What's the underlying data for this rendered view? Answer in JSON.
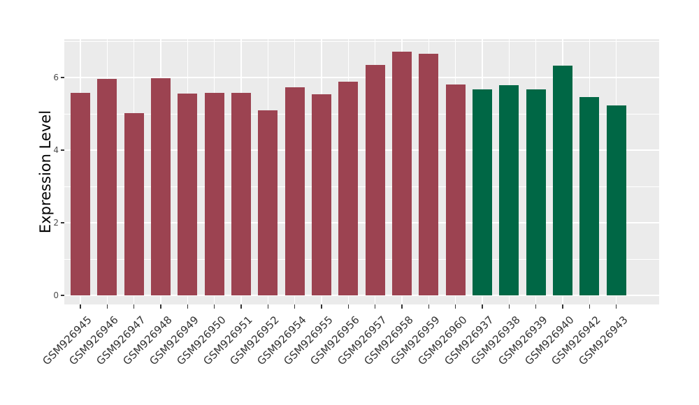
{
  "style": {
    "figure_bg": "#ffffff",
    "panel_bg": "#ebebeb",
    "grid_color": "#ffffff",
    "tick_mark_color": "#333333",
    "y_tick_text_color": "#4d4d4d",
    "x_tick_text_color": "#333333",
    "axis_title_color": "#000000",
    "bar_color_group1": "#9c4351",
    "bar_color_group2": "#006745"
  },
  "chart_data": {
    "type": "bar",
    "title": "",
    "xlabel": "",
    "ylabel": "Expression Level",
    "legend": "none",
    "grid": "on",
    "ylim": [
      -0.26,
      7.05
    ],
    "y_major_ticks": [
      0,
      2,
      4,
      6
    ],
    "y_minor_ticks": [
      1,
      3,
      5,
      7
    ],
    "categories": [
      "GSM926945",
      "GSM926946",
      "GSM926947",
      "GSM926948",
      "GSM926949",
      "GSM926950",
      "GSM926951",
      "GSM926952",
      "GSM926954",
      "GSM926955",
      "GSM926956",
      "GSM926957",
      "GSM926958",
      "GSM926959",
      "GSM926960",
      "GSM926937",
      "GSM926938",
      "GSM926939",
      "GSM926940",
      "GSM926942",
      "GSM926943"
    ],
    "values": [
      5.58,
      5.97,
      5.02,
      5.98,
      5.55,
      5.57,
      5.58,
      5.1,
      5.74,
      5.54,
      5.88,
      6.35,
      6.71,
      6.65,
      5.81,
      5.68,
      5.79,
      5.68,
      6.33,
      5.46,
      5.23
    ],
    "bar_colors": [
      "#9c4351",
      "#9c4351",
      "#9c4351",
      "#9c4351",
      "#9c4351",
      "#9c4351",
      "#9c4351",
      "#9c4351",
      "#9c4351",
      "#9c4351",
      "#9c4351",
      "#9c4351",
      "#9c4351",
      "#9c4351",
      "#9c4351",
      "#006745",
      "#006745",
      "#006745",
      "#006745",
      "#006745",
      "#006745"
    ],
    "color_groups": [
      {
        "color": "#9c4351",
        "first_category": "GSM926945",
        "last_category": "GSM926960",
        "count": 15
      },
      {
        "color": "#006745",
        "first_category": "GSM926937",
        "last_category": "GSM926943",
        "count": 6
      }
    ]
  }
}
